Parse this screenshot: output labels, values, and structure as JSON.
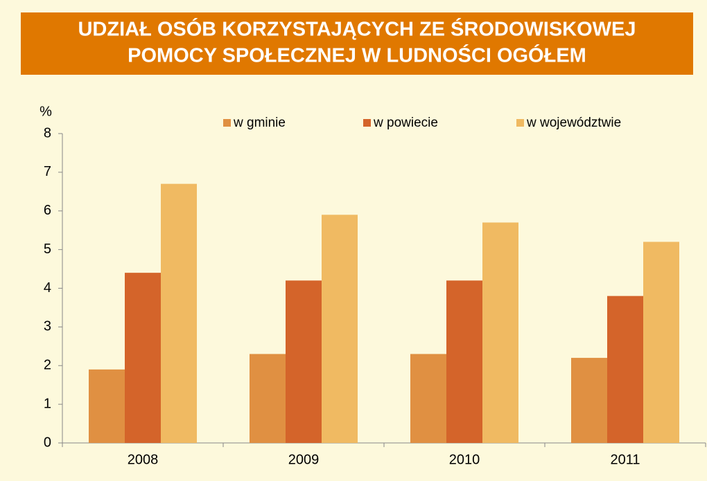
{
  "chart_data": {
    "type": "bar",
    "title": [
      "UDZIAŁ OSÓB KORZYSTAJĄCYCH ZE ŚRODOWISKOWEJ",
      "POMOCY SPOŁECZNEJ W LUDNOŚCI OGÓŁEM"
    ],
    "y_label": "%",
    "categories": [
      "2008",
      "2009",
      "2010",
      "2011"
    ],
    "series": [
      {
        "name": "w gminie",
        "color": "#e09042",
        "values": [
          1.9,
          2.3,
          2.3,
          2.2
        ]
      },
      {
        "name": "w powiecie",
        "color": "#d4642a",
        "values": [
          4.4,
          4.2,
          4.2,
          3.8
        ]
      },
      {
        "name": "w województwie",
        "color": "#f0ba62",
        "values": [
          6.7,
          5.9,
          5.7,
          5.2
        ]
      }
    ],
    "ylim": [
      0,
      8
    ],
    "yticks": [
      0,
      1,
      2,
      3,
      4,
      5,
      6,
      7,
      8
    ],
    "grid": false
  }
}
